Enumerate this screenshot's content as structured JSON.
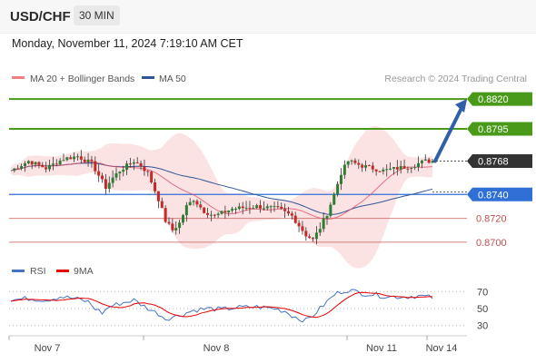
{
  "header": {
    "symbol": "USD/CHF",
    "timeframe": "30 MIN",
    "timestamp": "Monday, November 11, 2024 7:19:10 AM CET"
  },
  "legend": [
    {
      "label": "MA 20 + Bollinger Bands",
      "color": "#f08080"
    },
    {
      "label": "MA 50",
      "color": "#2f5597"
    }
  ],
  "rsi_legend": [
    {
      "label": "RSI",
      "color": "#4472c4"
    },
    {
      "label": "9MA",
      "color": "#e60000"
    }
  ],
  "copyright": "Research © 2024 Trading Central",
  "chart_data": {
    "type": "candlestick",
    "y_range": [
      0.869,
      0.883
    ],
    "levels": [
      {
        "value": 0.882,
        "label": "0.8820",
        "kind": "resistance",
        "color": "#4a9a1a"
      },
      {
        "value": 0.8795,
        "label": "0.8795",
        "kind": "resistance",
        "color": "#4a9a1a"
      },
      {
        "value": 0.8768,
        "label": "0.8768",
        "kind": "last",
        "color": "#333333"
      },
      {
        "value": 0.874,
        "label": "0.8740",
        "kind": "pivot",
        "color": "#2f6fd6"
      },
      {
        "value": 0.872,
        "label": "0.8720",
        "kind": "support",
        "color": "#c0504d"
      },
      {
        "value": 0.87,
        "label": "0.8700",
        "kind": "support",
        "color": "#c0504d"
      }
    ],
    "x_labels": [
      "Nov 7",
      "Nov 8",
      "Nov 11",
      "Nov 14"
    ],
    "price_points": [
      [
        0,
        0.876
      ],
      [
        5,
        0.8768
      ],
      [
        10,
        0.8762
      ],
      [
        15,
        0.877
      ],
      [
        19,
        0.8772
      ],
      [
        23,
        0.8766
      ],
      [
        25,
        0.8756
      ],
      [
        27,
        0.8746
      ],
      [
        29,
        0.8754
      ],
      [
        31,
        0.876
      ],
      [
        35,
        0.8768
      ],
      [
        37,
        0.8764
      ],
      [
        39,
        0.8758
      ],
      [
        42,
        0.8736
      ],
      [
        44,
        0.8718
      ],
      [
        46,
        0.871
      ],
      [
        48,
        0.8716
      ],
      [
        50,
        0.873
      ],
      [
        52,
        0.8736
      ],
      [
        55,
        0.8726
      ],
      [
        58,
        0.8722
      ],
      [
        63,
        0.8728
      ],
      [
        70,
        0.873
      ],
      [
        76,
        0.8728
      ],
      [
        80,
        0.8722
      ],
      [
        82,
        0.8714
      ],
      [
        84,
        0.8706
      ],
      [
        86,
        0.8702
      ],
      [
        88,
        0.8712
      ],
      [
        90,
        0.8724
      ],
      [
        92,
        0.874
      ],
      [
        94,
        0.8758
      ],
      [
        96,
        0.8768
      ],
      [
        100,
        0.8764
      ],
      [
        106,
        0.876
      ],
      [
        110,
        0.8762
      ],
      [
        114,
        0.8764
      ],
      [
        118,
        0.8768
      ],
      [
        120,
        0.8768
      ]
    ],
    "projection": {
      "from": 0.8768,
      "to": 0.882
    },
    "rsi": {
      "y_range": [
        20,
        80
      ],
      "levels": [
        70,
        50,
        30
      ],
      "points": [
        [
          0,
          60
        ],
        [
          5,
          62
        ],
        [
          10,
          60
        ],
        [
          14,
          64
        ],
        [
          18,
          62
        ],
        [
          22,
          58
        ],
        [
          24,
          50
        ],
        [
          26,
          45
        ],
        [
          28,
          52
        ],
        [
          31,
          56
        ],
        [
          35,
          60
        ],
        [
          37,
          55
        ],
        [
          40,
          48
        ],
        [
          42,
          44
        ],
        [
          44,
          38
        ],
        [
          46,
          40
        ],
        [
          48,
          42
        ],
        [
          52,
          48
        ],
        [
          56,
          50
        ],
        [
          60,
          49
        ],
        [
          64,
          51
        ],
        [
          70,
          52
        ],
        [
          75,
          50
        ],
        [
          78,
          47
        ],
        [
          80,
          42
        ],
        [
          82,
          38
        ],
        [
          84,
          36
        ],
        [
          86,
          42
        ],
        [
          88,
          50
        ],
        [
          90,
          58
        ],
        [
          92,
          66
        ],
        [
          94,
          70
        ],
        [
          96,
          72
        ],
        [
          100,
          68
        ],
        [
          104,
          66
        ],
        [
          108,
          64
        ],
        [
          112,
          64
        ],
        [
          116,
          65
        ],
        [
          120,
          63
        ]
      ]
    }
  }
}
